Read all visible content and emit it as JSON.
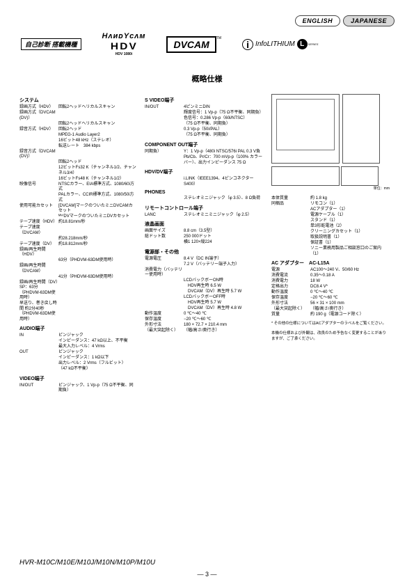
{
  "lang": {
    "english": "ENGLISH",
    "japanese": "JAPANESE"
  },
  "logos": {
    "shindan": "自己診断 搭載機種",
    "handycam_l1": "HᴧᴎᴅYᴄᴧᴍ",
    "handycam_l2": "HDV",
    "handycam_l3": "HDV 1080i",
    "dvcam": "DVCAM",
    "tm": "TM",
    "infolithium": "InfoLITHIUM",
    "l": "L",
    "series": "SERIES"
  },
  "title": "概略仕様",
  "col1": {
    "sec1_h": "システム",
    "rows1": [
      [
        "録画方式（HDV）",
        "回転2ヘッドヘリカルスキャン"
      ],
      [
        "録画方式（DVCAM (DV)）",
        ""
      ],
      [
        "",
        "回転2ヘッドヘリカルスキャン"
      ],
      [
        "録音方式（HDV）",
        "回転2ヘッド"
      ],
      [
        "",
        "MPEG-1 Audio Layer2"
      ],
      [
        "",
        "16ビット48 kHz（ステレオ）"
      ],
      [
        "",
        "転送レート　384 kbps"
      ],
      [
        "録音方式（DVCAM (DV)）",
        ""
      ],
      [
        "",
        "回転2ヘッド"
      ],
      [
        "",
        "12ビットFs32 K（チャンネル1/2、チャンネル3/4）"
      ],
      [
        "",
        "16ビットFs48 K（チャンネル1/2）"
      ],
      [
        "映像信号",
        "NTSCカラー、EIA標準方式、1080/60i方式"
      ],
      [
        "",
        "PALカラー、CCIR標準方式、1080/50i方式"
      ],
      [
        "使用可能カセット",
        "[DVCAM]マークのついたミニDVCAMカセット"
      ],
      [
        "",
        "ᴹⁱⁿⁱDVマークのついたミニDVカセット"
      ],
      [
        "テープ速度（HDV）",
        "約18.81mm/秒"
      ],
      [
        "テープ速度（DVCAM）",
        ""
      ],
      [
        "",
        "約28.218mm/秒"
      ],
      [
        "テープ速度（DV）",
        "約18.812mm/秒"
      ],
      [
        "録画/再生時間（HDV）",
        ""
      ],
      [
        "",
        "63分（PHDVM-63DM使用時）"
      ],
      [
        "録画/再生時間（DVCAM）",
        ""
      ],
      [
        "",
        "41分（PHDVM-63DM使用時）"
      ],
      [
        "録画/再生時間（DV）SP：63分（PHDVM-63DM使用時）",
        ""
      ],
      [
        "早送り、巻き戻し時間 約2分40秒（PHDVM-63DM使用時）",
        ""
      ]
    ],
    "sec2_h": "AUDIO端子",
    "rows2": [
      [
        "IN",
        "ピンジャック"
      ],
      [
        "",
        "インピーダンス：47 kΩ以上、不平衡"
      ],
      [
        "",
        "最大入力レベル：4 Vrms"
      ],
      [
        "OUT",
        "ピンジャック"
      ],
      [
        "",
        "インピーダンス：1 kΩ以下"
      ],
      [
        "",
        "出力レベル：2 Vrms（フルビット）"
      ],
      [
        "",
        "（47 kΩ不平衡）"
      ]
    ],
    "sec3_h": "VIDEO端子",
    "rows3": [
      [
        "IN/OUT",
        "ピンジャック、1 Vp-p（75 Ω不平衡、同期負）"
      ]
    ]
  },
  "col2": {
    "sec1_h": "S VIDEO端子",
    "rows1": [
      [
        "IN/OUT",
        "4ピンミニDIN"
      ],
      [
        "",
        "輝度信号：1 Vp-p（75 Ω不平衡、同期負）"
      ],
      [
        "",
        "色信号：0.286 Vp-p（60i/NTSC）"
      ],
      [
        "",
        "（75 Ω不平衡、同期負）"
      ],
      [
        "",
        "0.3 Vp-p（50i/PAL）"
      ],
      [
        "",
        "（75 Ω不平衡、同期負）"
      ]
    ],
    "sec2_h": "COMPONENT OUT端子",
    "rows2": [
      [
        "同期負）",
        "Y：1 Vp-p（480i NTSC/576i PAL 0.3 V負"
      ],
      [
        "",
        "Pb/Cb、Pr/Cr：700 mVp-p（100% カラー"
      ],
      [
        "",
        "バー）、出力インピーダンス 75 Ω"
      ]
    ],
    "sec3_h": "HDV/DV端子",
    "rows3": [
      [
        "",
        "i.LINK（IEEE1394、4ピンコネクター S400）"
      ]
    ],
    "sec4_h": "PHONES",
    "rows4": [
      [
        "",
        "ステレオミニジャック（φ 3.5）、8 Ω負荷"
      ]
    ],
    "sec5_h": "リモートコントロール端子",
    "rows5": [
      [
        "LANC",
        "ステレオミニミニジャック（φ 2.5）"
      ]
    ],
    "sec6_h": "液晶画面",
    "rows6": [
      [
        "画面サイズ",
        "8.8 cm（3.5型）"
      ],
      [
        "総ドット数",
        "250 000ドット"
      ],
      [
        "",
        "横1 120×縦224"
      ]
    ],
    "sec7_h": "電源部・その他",
    "rows7": [
      [
        "電源電圧",
        "8.4 V（DC IN端子）"
      ],
      [
        "",
        "7.2 V（バッテリー端子入力）"
      ],
      [
        "消費電力（バッテリー使用時）",
        ""
      ],
      [
        "",
        "LCDバックボーON時"
      ],
      [
        "",
        "　HDV再生時 6.5 W"
      ],
      [
        "",
        "　DVCAM（DV）再生時 5.7 W"
      ],
      [
        "",
        "LCDバックボーOFF時"
      ],
      [
        "",
        "　HDV再生時 5.7 W"
      ],
      [
        "",
        "　DVCAM（DV）再生時 4.8 W"
      ],
      [
        "動作温度",
        "0 ℃～40 ℃"
      ],
      [
        "保存温度",
        "−20 ℃～60 ℃"
      ],
      [
        "外形寸法",
        "180 × 72.7 × 210.4 mm"
      ],
      [
        "（最大突起除く）",
        "（幅/高さ/奥行き）"
      ]
    ]
  },
  "col3": {
    "unit": "単位：mm",
    "rows1": [
      [
        "本体質量",
        "約 1.8 kg"
      ],
      [
        "同梱品",
        "リモコン（1）"
      ],
      [
        "",
        "ACアダプター（1）"
      ],
      [
        "",
        "電源ケーブル（1）"
      ],
      [
        "",
        "スタンド（1）"
      ],
      [
        "",
        "単3形乾電池（2）"
      ],
      [
        "",
        "クリーニングカセット（1）"
      ],
      [
        "",
        "取扱説明書（1）"
      ],
      [
        "",
        "保証書（1）"
      ],
      [
        "",
        "ソニー業務用製品ご相談窓口のご案内（1）"
      ]
    ],
    "sec2_h": "AC アダプター　AC-L15A",
    "rows2": [
      [
        "電源",
        "AC100～240 V、50/60 Hz"
      ],
      [
        "消費電流",
        "0.35～0.18 A"
      ],
      [
        "消費電力",
        "18 W"
      ],
      [
        "定格出力",
        "DC8.4 V*"
      ],
      [
        "動作温度",
        "0 ℃～40 ℃"
      ],
      [
        "保存温度",
        "−20 ℃～60 ℃"
      ],
      [
        "外形寸法",
        "56 × 31 × 100 mm"
      ],
      [
        "（最大突起除く）",
        "（幅/高さ/奥行き）"
      ],
      [
        "質量",
        "約 190 g（電源コード除く）"
      ]
    ],
    "note1": "* その他の仕様についてはACアダプターのラベルをご覧ください。",
    "note2": "本機の仕様および外観は、改良のため予告なく変更することがありますが、ご了承ください。"
  },
  "footer": {
    "model": "HVR-M10C/M10E/M10J/M10N/M10P/M10U",
    "page": "— 3 —"
  }
}
